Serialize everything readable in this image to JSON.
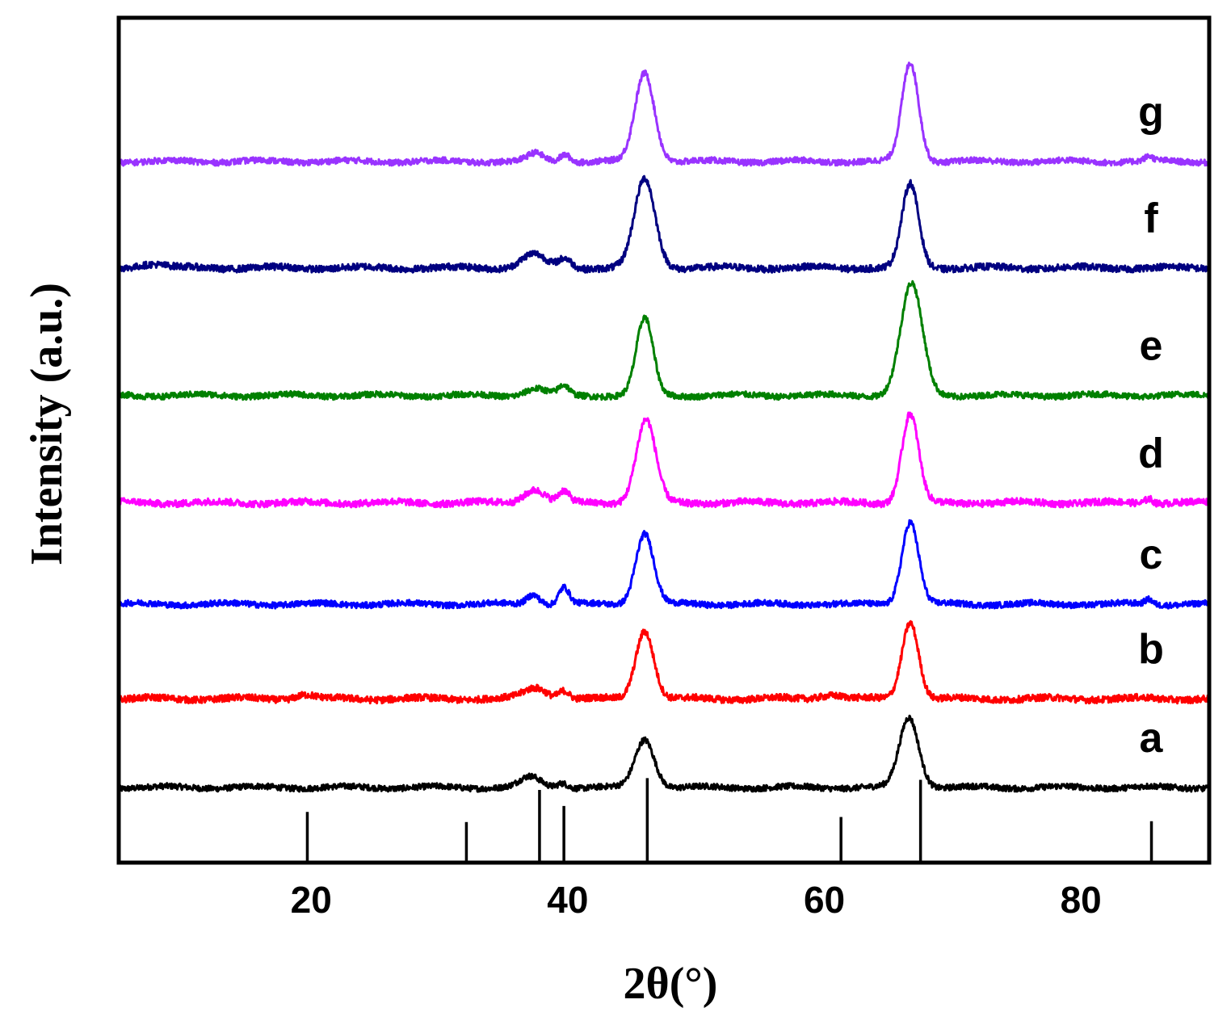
{
  "chart_data": {
    "type": "line",
    "title": "",
    "xlabel": "2θ(°)",
    "ylabel": "Intensity (a.u.)",
    "xlim": [
      5,
      90
    ],
    "ylim": [
      0,
      100
    ],
    "xticks": [
      20,
      40,
      60,
      80
    ],
    "xtick_labels": [
      "20",
      "40",
      "60",
      "80"
    ],
    "grid": false,
    "legend": "none (curve labels at right)",
    "reference_sticks": {
      "positions": [
        19.7,
        32.1,
        37.8,
        39.7,
        46.2,
        61.3,
        67.5,
        85.5
      ],
      "heights": [
        6.0,
        4.8,
        8.6,
        6.7,
        10.0,
        5.4,
        9.8,
        4.9
      ]
    },
    "series": [
      {
        "name": "a",
        "color": "#000000",
        "offset": 8.9,
        "peaks": [
          [
            37.1,
            1.2,
            0.8
          ],
          [
            39.6,
            0.6,
            0.4
          ],
          [
            46.0,
            5.7,
            0.75
          ],
          [
            66.6,
            8.3,
            0.75
          ]
        ],
        "noise": 0.35
      },
      {
        "name": "b",
        "color": "#ff0000",
        "offset": 19.4,
        "peaks": [
          [
            37.5,
            1.3,
            0.9
          ],
          [
            39.7,
            1.0,
            0.4
          ],
          [
            46.0,
            8.1,
            0.7
          ],
          [
            66.7,
            9.1,
            0.65
          ],
          [
            19.5,
            0.5,
            0.7
          ],
          [
            60.5,
            0.5,
            0.9
          ]
        ],
        "noise": 0.4
      },
      {
        "name": "c",
        "color": "#0000ff",
        "offset": 30.6,
        "peaks": [
          [
            37.3,
            1.2,
            0.5
          ],
          [
            39.7,
            2.0,
            0.4
          ],
          [
            46.0,
            8.4,
            0.7
          ],
          [
            66.7,
            9.8,
            0.65
          ],
          [
            85.3,
            0.6,
            0.3
          ]
        ],
        "noise": 0.35
      },
      {
        "name": "d",
        "color": "#ff00ff",
        "offset": 42.6,
        "peaks": [
          [
            37.4,
            1.6,
            0.8
          ],
          [
            39.7,
            1.3,
            0.4
          ],
          [
            46.1,
            9.8,
            0.75
          ],
          [
            66.7,
            10.5,
            0.65
          ],
          [
            85.3,
            0.6,
            0.3
          ]
        ],
        "noise": 0.4
      },
      {
        "name": "e",
        "color": "#008000",
        "offset": 55.3,
        "peaks": [
          [
            37.5,
            0.8,
            0.8
          ],
          [
            39.7,
            1.1,
            0.4
          ],
          [
            46.0,
            9.1,
            0.65
          ],
          [
            66.8,
            13.2,
            0.85
          ]
        ],
        "noise": 0.35
      },
      {
        "name": "f",
        "color": "#000080",
        "offset": 70.4,
        "peaks": [
          [
            37.3,
            1.6,
            0.9
          ],
          [
            39.8,
            1.1,
            0.5
          ],
          [
            46.0,
            10.5,
            0.8
          ],
          [
            66.7,
            9.9,
            0.65
          ],
          [
            7.5,
            0.5,
            1.0
          ]
        ],
        "noise": 0.4
      },
      {
        "name": "g",
        "color": "#9933ff",
        "offset": 83.0,
        "peaks": [
          [
            37.5,
            0.9,
            0.6
          ],
          [
            39.8,
            0.9,
            0.4
          ],
          [
            46.0,
            10.5,
            0.75
          ],
          [
            66.7,
            11.7,
            0.65
          ],
          [
            85.3,
            0.5,
            0.3
          ]
        ],
        "noise": 0.35
      }
    ]
  }
}
